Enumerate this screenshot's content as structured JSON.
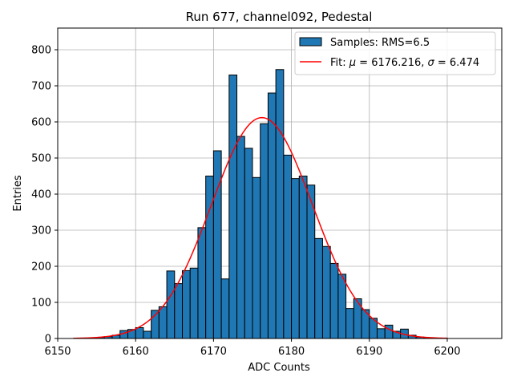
{
  "chart_data": {
    "type": "bar",
    "title": "Run 677, channel092, Pedestal",
    "xlabel": "ADC Counts",
    "ylabel": "Entries",
    "xlim": [
      6150,
      6207
    ],
    "ylim": [
      0,
      860
    ],
    "xticks": [
      6150,
      6160,
      6170,
      6180,
      6190,
      6200
    ],
    "yticks": [
      0,
      100,
      200,
      300,
      400,
      500,
      600,
      700,
      800
    ],
    "grid": true,
    "legend_position": "top-right",
    "colors": {
      "bars": "#1f77b4",
      "bar_edge": "#000000",
      "fit": "#ff0000",
      "grid": "#b0b0b0"
    },
    "histogram": {
      "name": "Samples: RMS=6.5",
      "bin_starts": [
        6153,
        6154,
        6155,
        6156,
        6157,
        6158,
        6159,
        6160,
        6161,
        6162,
        6163,
        6164,
        6165,
        6166,
        6167,
        6168,
        6169,
        6170,
        6171,
        6172,
        6173,
        6174,
        6175,
        6176,
        6177,
        6178,
        6179,
        6180,
        6181,
        6182,
        6183,
        6184,
        6185,
        6186,
        6187,
        6188,
        6189,
        6190,
        6191,
        6192,
        6193,
        6194,
        6195,
        6196,
        6197,
        6198,
        6199
      ],
      "bin_width": 1,
      "values": [
        1,
        1,
        3,
        5,
        9,
        22,
        25,
        30,
        20,
        78,
        88,
        187,
        152,
        188,
        195,
        307,
        450,
        520,
        165,
        730,
        560,
        527,
        446,
        595,
        680,
        745,
        508,
        443,
        450,
        425,
        277,
        255,
        208,
        178,
        83,
        110,
        80,
        56,
        27,
        37,
        20,
        26,
        9,
        4,
        1,
        1,
        1
      ]
    },
    "fit": {
      "name_prefix": "Fit: ",
      "mu_symbol": "μ",
      "mu_text": " = 6176.216, ",
      "sigma_symbol": "σ",
      "sigma_text": " = 6.474",
      "mu": 6176.216,
      "sigma": 6.474,
      "amplitude": 612,
      "x_range": [
        6152,
        6200
      ]
    }
  }
}
